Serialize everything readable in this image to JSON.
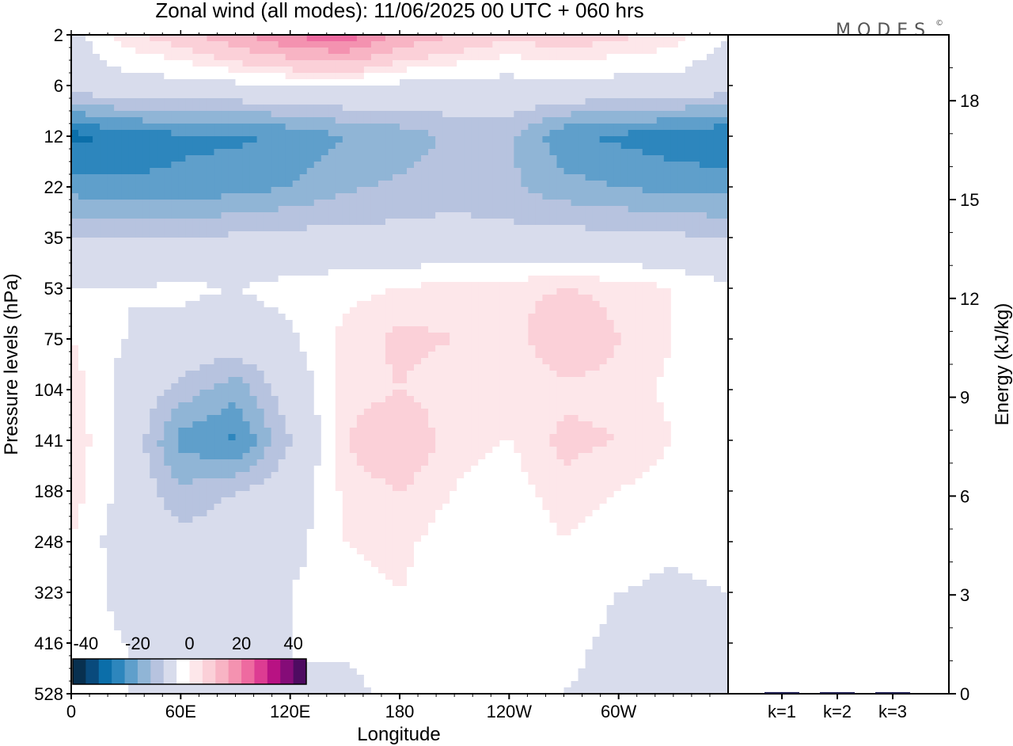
{
  "title": "Zonal wind (all modes):  11/06/2025  00 UTC  + 060 hrs",
  "logo": {
    "text": "MODES",
    "mark": "©"
  },
  "chart_data": [
    {
      "type": "heatmap",
      "title": "Zonal wind (all modes):  11/06/2025  00 UTC  + 060 hrs",
      "xlabel": "Longitude",
      "ylabel": "Pressure levels (hPa)",
      "x_ticks": [
        "0",
        "60E",
        "120E",
        "180",
        "120W",
        "60W"
      ],
      "y_ticks": [
        "2",
        "6",
        "12",
        "22",
        "35",
        "53",
        "75",
        "104",
        "141",
        "188",
        "248",
        "323",
        "416",
        "528"
      ],
      "colorbar": {
        "labels": [
          "-40",
          "-20",
          "0",
          "20",
          "40"
        ],
        "range": [
          -45,
          45
        ],
        "colors": [
          "#08304f",
          "#094a7c",
          "#0b6ea9",
          "#2d86bd",
          "#5f9fcb",
          "#90b5d6",
          "#b7c3df",
          "#d8dcec",
          "#ffffff",
          "#fde7ea",
          "#fbd0d8",
          "#f8b4c4",
          "#f492b0",
          "#ee6aa0",
          "#dd3c92",
          "#b81283",
          "#850c78",
          "#4e0b61"
        ]
      },
      "field": {
        "levels": [
          2,
          6,
          12,
          22,
          35,
          53,
          75,
          104,
          141,
          188,
          248,
          323,
          416,
          528
        ],
        "longitude_columns": [
          "0",
          "30E",
          "60E",
          "90E",
          "120E",
          "150E",
          "180",
          "150W",
          "120W",
          "90W",
          "60W",
          "30W",
          "0"
        ],
        "values": [
          [
            -4,
            4,
            8,
            14,
            20,
            24,
            14,
            10,
            6,
            8,
            6,
            4,
            -2
          ],
          [
            -6,
            -4,
            -4,
            -3,
            -2,
            -2,
            -3,
            -4,
            -4,
            -3,
            -4,
            -4,
            -6
          ],
          [
            -32,
            -28,
            -26,
            -26,
            -24,
            -20,
            -18,
            -14,
            -14,
            -24,
            -26,
            -28,
            -30
          ],
          [
            -22,
            -24,
            -24,
            -22,
            -20,
            -16,
            -14,
            -12,
            -14,
            -18,
            -20,
            -22,
            -22
          ],
          [
            -10,
            -10,
            -10,
            -9,
            -8,
            -8,
            -8,
            -8,
            -8,
            -8,
            -8,
            -9,
            -10
          ],
          [
            -2,
            -2,
            -1,
            -2,
            0,
            1,
            2,
            4,
            4,
            5,
            4,
            2,
            -1
          ],
          [
            2,
            -2,
            -4,
            -6,
            -3,
            3,
            6,
            5,
            3,
            9,
            5,
            2,
            0
          ],
          [
            4,
            -4,
            -12,
            -18,
            -6,
            3,
            5,
            3,
            2,
            4,
            4,
            1,
            -2
          ],
          [
            5,
            -4,
            -22,
            -26,
            -10,
            5,
            9,
            3,
            2,
            6,
            5,
            2,
            0
          ],
          [
            4,
            -4,
            -14,
            -10,
            -6,
            3,
            5,
            2,
            0,
            4,
            2,
            0,
            0
          ],
          [
            2,
            -5,
            -8,
            -6,
            -4,
            2,
            3,
            0,
            -1,
            2,
            0,
            -1,
            0
          ],
          [
            2,
            -4,
            -5,
            -4,
            -2,
            1,
            2,
            0,
            -1,
            0,
            -2,
            -3,
            -2
          ],
          [
            0,
            -2,
            -3,
            -3,
            -2,
            -1,
            1,
            -1,
            -2,
            -1,
            -3,
            -4,
            -3
          ],
          [
            0,
            -2,
            -2,
            -2,
            -2,
            -4,
            0,
            -2,
            -2,
            -2,
            -3,
            -3,
            -2
          ]
        ]
      }
    },
    {
      "type": "bar",
      "categories": [
        "k=1",
        "k=2",
        "k=3"
      ],
      "values": [
        0.05,
        0.03,
        0.02
      ],
      "ylabel": "Energy (kJ/kg)",
      "y_ticks": [
        0,
        3,
        6,
        9,
        12,
        15,
        18
      ],
      "ylim": [
        0,
        20
      ],
      "bar_color": "#1a1a4e"
    }
  ]
}
